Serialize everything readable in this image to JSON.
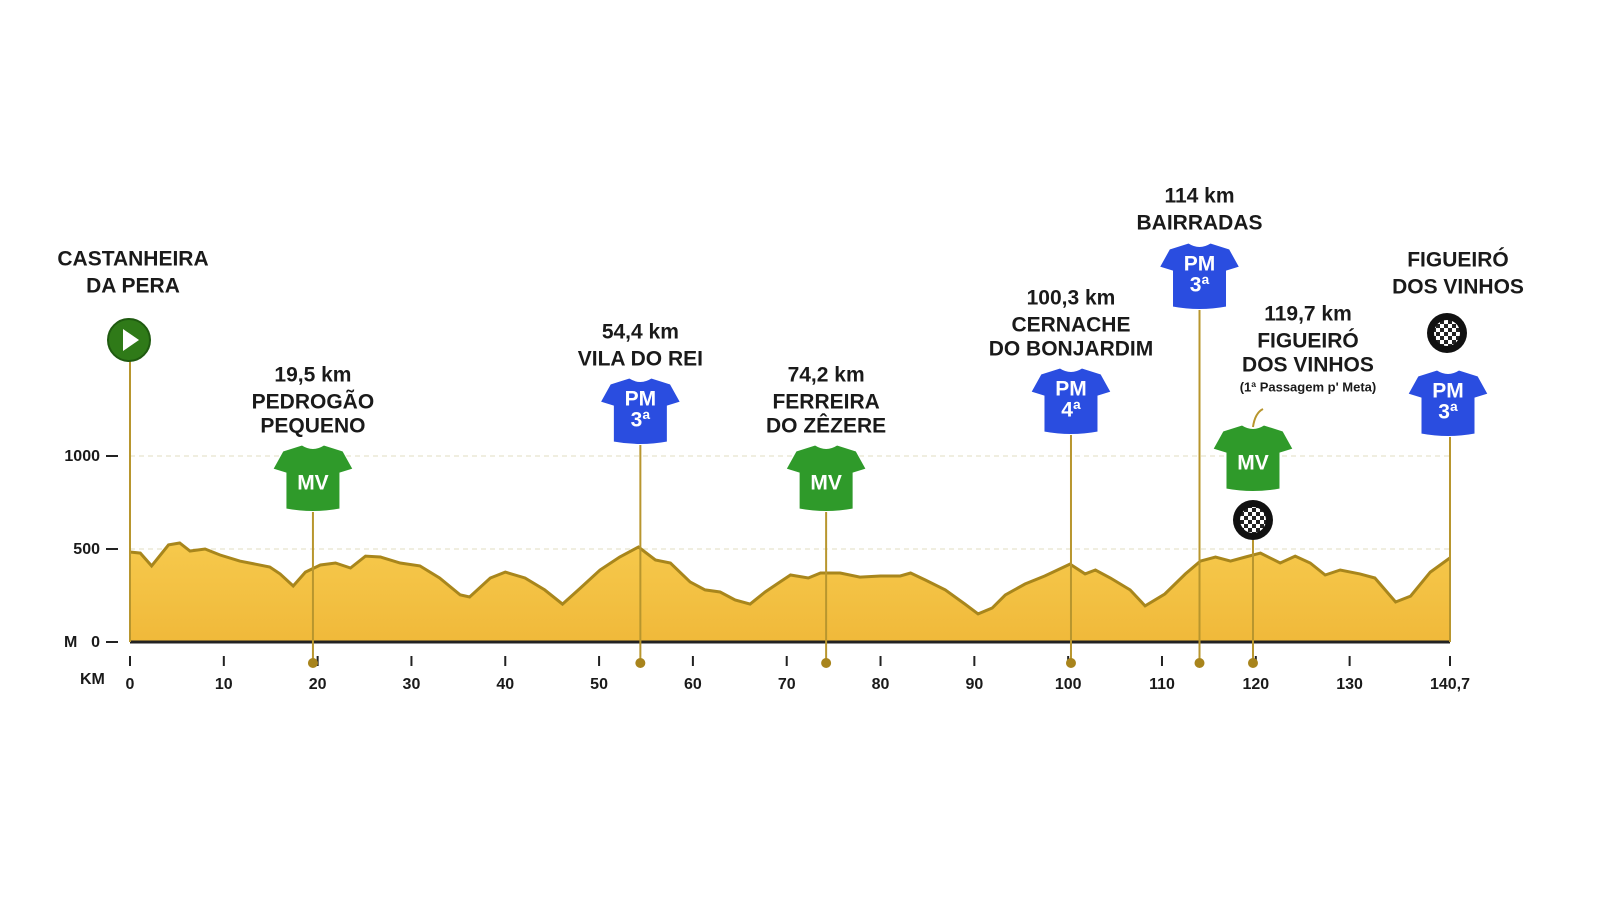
{
  "chart_data": {
    "type": "area",
    "x_label": "KM",
    "y_label": "M",
    "xlim": [
      0,
      140.7
    ],
    "ylim": [
      0,
      1000
    ],
    "xticks": [
      0,
      10,
      20,
      30,
      40,
      50,
      60,
      70,
      80,
      90,
      100,
      110,
      120,
      130,
      {
        "value": 140.7,
        "label": "140,7"
      }
    ],
    "yticks": [
      0,
      500,
      1000
    ],
    "grid": true,
    "color": "#f5c542",
    "line_color": "#a8861c",
    "x": [
      0,
      1.1,
      2.3,
      4.1,
      5.3,
      6.4,
      8.0,
      9.6,
      11.7,
      14.9,
      16.0,
      17.4,
      18.7,
      20.3,
      21.9,
      23.5,
      25.1,
      26.7,
      28.8,
      30.9,
      33.0,
      35.2,
      36.2,
      38.4,
      40.0,
      42.1,
      44.2,
      46.1,
      48.0,
      50.1,
      52.2,
      54.2,
      56.0,
      57.6,
      59.7,
      61.3,
      62.9,
      64.5,
      66.1,
      67.7,
      69.3,
      70.4,
      72.3,
      73.6,
      75.7,
      77.8,
      80.0,
      82.1,
      83.2,
      84.8,
      86.9,
      89.0,
      90.4,
      91.9,
      93.3,
      95.4,
      97.5,
      100.2,
      101.8,
      102.9,
      104.5,
      106.6,
      108.2,
      110.3,
      112.5,
      114.1,
      115.7,
      117.3,
      118.9,
      120.5,
      122.6,
      124.2,
      125.8,
      127.4,
      129.0,
      131.1,
      132.7,
      134.9,
      136.5,
      138.6,
      140.7
    ],
    "values": [
      484,
      478,
      409,
      522,
      532,
      489,
      500,
      468,
      435,
      403,
      366,
      301,
      376,
      414,
      425,
      398,
      462,
      457,
      425,
      409,
      344,
      253,
      242,
      344,
      376,
      344,
      280,
      204,
      290,
      387,
      457,
      511,
      441,
      425,
      323,
      280,
      269,
      226,
      204,
      269,
      323,
      360,
      344,
      371,
      371,
      349,
      355,
      355,
      371,
      333,
      280,
      204,
      151,
      183,
      253,
      312,
      355,
      419,
      366,
      387,
      344,
      280,
      194,
      258,
      366,
      435,
      457,
      435,
      457,
      478,
      425,
      462,
      425,
      360,
      387,
      366,
      344,
      215,
      247,
      376,
      452
    ],
    "start": {
      "name": [
        "CASTANHEIRA",
        "DA PERA"
      ]
    },
    "finish": {
      "name": [
        "FIGUEIRÓ",
        "DOS VINHOS"
      ],
      "jersey": "PM",
      "category": "3ª"
    },
    "points": [
      {
        "km": {
          "value": 19.5,
          "label": "19,5 km"
        },
        "name": [
          "PEDROGÃO",
          "PEQUENO"
        ],
        "jersey": "MV"
      },
      {
        "km": {
          "value": 54.4,
          "label": "54,4 km"
        },
        "name": [
          "VILA DO REI"
        ],
        "jersey": "PM",
        "category": "3ª"
      },
      {
        "km": {
          "value": 74.2,
          "label": "74,2 km"
        },
        "name": [
          "FERREIRA",
          "DO ZÊZERE"
        ],
        "jersey": "MV"
      },
      {
        "km": {
          "value": 100.3,
          "label": "100,3 km"
        },
        "name": [
          "CERNACHE",
          "DO BONJARDIM"
        ],
        "jersey": "PM",
        "category": "4ª"
      },
      {
        "km": {
          "value": 114,
          "label": "114 km"
        },
        "name": [
          "BAIRRADAS"
        ],
        "jersey": "PM",
        "category": "3ª"
      },
      {
        "km": {
          "value": 119.7,
          "label": "119,7 km"
        },
        "name": [
          "FIGUEIRÓ",
          "DOS VINHOS"
        ],
        "note": "(1ª Passagem p' Meta)",
        "jersey": "MV"
      }
    ]
  }
}
